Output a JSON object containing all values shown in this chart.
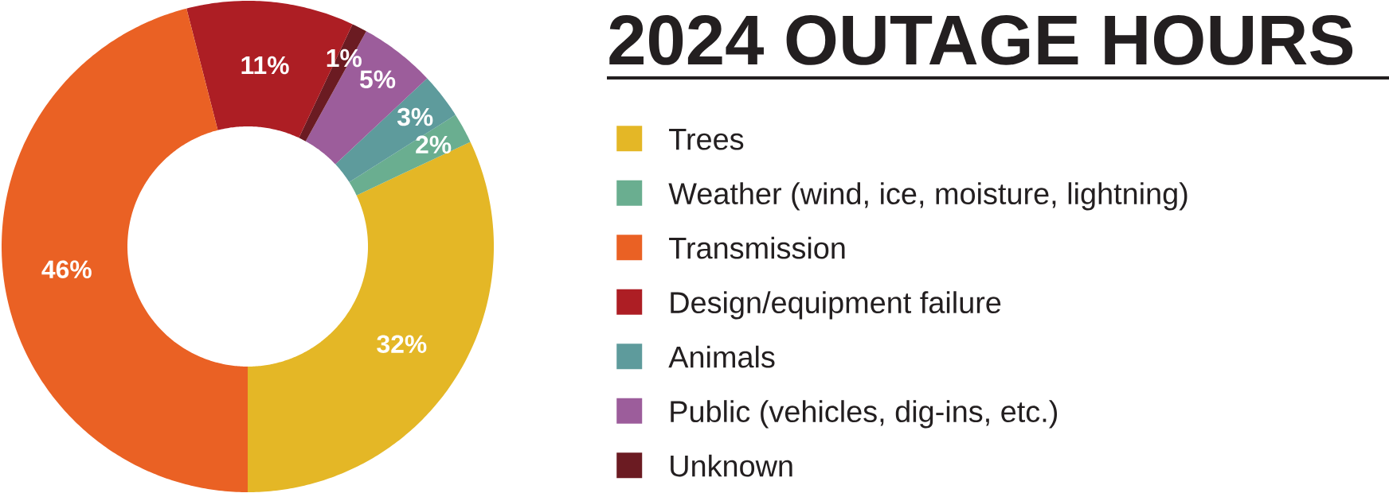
{
  "chart_data": {
    "type": "donut",
    "title": "2024 OUTAGE HOURS",
    "categories": [
      "Trees",
      "Weather (wind, ice, moisture, lightning)",
      "Transmission",
      "Design/equipment failure",
      "Animals",
      "Public (vehicles, dig-ins, etc.)",
      "Unknown"
    ],
    "values": [
      32,
      2,
      46,
      11,
      3,
      5,
      1
    ],
    "colors": [
      "#e4b726",
      "#6aae90",
      "#ea6124",
      "#ad1e24",
      "#5e9b9c",
      "#9c5d9b",
      "#6b1b22"
    ],
    "value_labels": [
      "32%",
      "2%",
      "46%",
      "11%",
      "3%",
      "5%",
      "1%"
    ],
    "legend": "right"
  }
}
